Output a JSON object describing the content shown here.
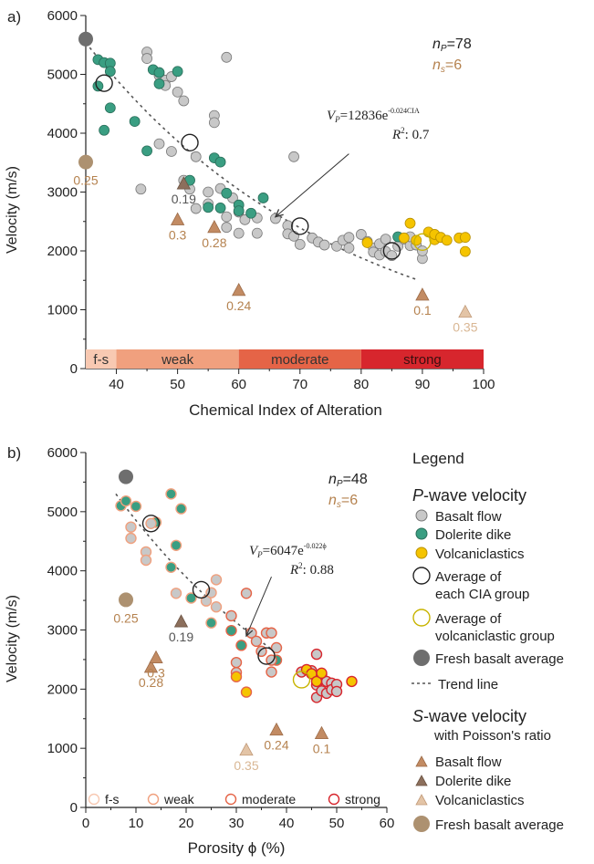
{
  "colors": {
    "basalt_fill": "#c8c8c8",
    "dolerite_fill": "#3a9e82",
    "volcani_fill": "#f5c400",
    "fresh_p": "#6e6e6e",
    "fresh_s": "#ad9170",
    "s_basalt": "#c28b63",
    "s_dolerite": "#8c6f5c",
    "s_volcani": "#e3c4a6",
    "label_brown": "#b5824f",
    "trend": "#555555",
    "cia_fs": "#f8c9b2",
    "cia_weak": "#f0a07e",
    "cia_moderate": "#e56447",
    "cia_strong": "#d7262d"
  },
  "chart_data": [
    {
      "panel": "a)",
      "type": "scatter",
      "xlabel": "Chemical Index of Alteration",
      "ylabel": "Velocity (m/s)",
      "xlim": [
        35,
        100
      ],
      "ylim": [
        0,
        6000
      ],
      "xticks": [
        "40",
        "50",
        "60",
        "70",
        "80",
        "90",
        "100"
      ],
      "yticks": [
        "0",
        "1000",
        "2000",
        "3000",
        "4000",
        "5000",
        "6000"
      ],
      "np_label": "n",
      "np_sub": "P",
      "np_value": "=78",
      "ns_label": "n",
      "ns_sub": "s",
      "ns_value": "=6",
      "eq_lhs": "V",
      "eq_sub": "P",
      "eq_rhs": "=12836e",
      "eq_exp": "-0.024CIA",
      "r2_label": "R",
      "r2_value": ": 0.7",
      "eq_arrow": [
        [
          66,
          2580
        ],
        [
          78,
          3650
        ]
      ],
      "trend": {
        "a": 12836,
        "b": -0.024,
        "from": 35,
        "to": 89
      },
      "bands": [
        {
          "label": "f-s",
          "from": 35,
          "to": 40,
          "color": "#f8c9b2"
        },
        {
          "label": "weak",
          "from": 40,
          "to": 60,
          "color": "#f0a07e"
        },
        {
          "label": "moderate",
          "from": 60,
          "to": 80,
          "color": "#e56447"
        },
        {
          "label": "strong",
          "from": 80,
          "to": 100,
          "color": "#d7262d"
        }
      ],
      "basalt_flow": [
        [
          45,
          5380
        ],
        [
          45,
          5270
        ],
        [
          47,
          4980
        ],
        [
          48,
          4900
        ],
        [
          48,
          4810
        ],
        [
          49,
          4960
        ],
        [
          50,
          4700
        ],
        [
          51,
          4550
        ],
        [
          58,
          5290
        ],
        [
          56,
          4300
        ],
        [
          56,
          4180
        ],
        [
          47,
          3820
        ],
        [
          49,
          3690
        ],
        [
          53,
          3600
        ],
        [
          51,
          3200
        ],
        [
          52,
          3050
        ],
        [
          55,
          3000
        ],
        [
          57,
          3060
        ],
        [
          59,
          2900
        ],
        [
          55,
          2800
        ],
        [
          53,
          2720
        ],
        [
          60,
          2660
        ],
        [
          58,
          2580
        ],
        [
          61,
          2530
        ],
        [
          58,
          2400
        ],
        [
          60,
          2300
        ],
        [
          63,
          2560
        ],
        [
          63,
          2300
        ],
        [
          66,
          2550
        ],
        [
          68,
          2430
        ],
        [
          68,
          2290
        ],
        [
          69,
          2250
        ],
        [
          70,
          2110
        ],
        [
          72,
          2220
        ],
        [
          73,
          2150
        ],
        [
          74,
          2100
        ],
        [
          76,
          2080
        ],
        [
          77,
          2180
        ],
        [
          78,
          2230
        ],
        [
          78,
          2050
        ],
        [
          80,
          2280
        ],
        [
          81,
          2160
        ],
        [
          82,
          2050
        ],
        [
          82,
          1980
        ],
        [
          83,
          2120
        ],
        [
          83,
          1930
        ],
        [
          84,
          2200
        ],
        [
          84,
          1990
        ],
        [
          85,
          1920
        ],
        [
          86,
          2080
        ],
        [
          87,
          2200
        ],
        [
          88,
          2090
        ],
        [
          88,
          2240
        ],
        [
          89,
          2100
        ],
        [
          90,
          1870
        ],
        [
          90,
          2000
        ],
        [
          69,
          3600
        ],
        [
          44,
          3050
        ]
      ],
      "dolerite_dike": [
        [
          37,
          5250
        ],
        [
          38,
          5200
        ],
        [
          39,
          5190
        ],
        [
          37,
          4800
        ],
        [
          39,
          5050
        ],
        [
          39,
          4430
        ],
        [
          43,
          4200
        ],
        [
          45,
          3700
        ],
        [
          46,
          5080
        ],
        [
          47,
          4840
        ],
        [
          47,
          5030
        ],
        [
          50,
          5050
        ],
        [
          56,
          3580
        ],
        [
          57,
          3510
        ],
        [
          52,
          3200
        ],
        [
          55,
          2740
        ],
        [
          57,
          2730
        ],
        [
          58,
          2980
        ],
        [
          60,
          2780
        ],
        [
          60,
          2680
        ],
        [
          62,
          2640
        ],
        [
          64,
          2900
        ],
        [
          86,
          2240
        ],
        [
          38,
          4050
        ]
      ],
      "volcaniclastics": [
        [
          81,
          2140
        ],
        [
          87,
          2220
        ],
        [
          88,
          2470
        ],
        [
          89,
          2180
        ],
        [
          91,
          2320
        ],
        [
          92,
          2190
        ],
        [
          92,
          2280
        ],
        [
          93,
          2230
        ],
        [
          94,
          2180
        ],
        [
          96,
          2220
        ],
        [
          97,
          2230
        ],
        [
          97,
          1990
        ]
      ],
      "cia_averages": [
        [
          38,
          4850
        ],
        [
          52,
          3840
        ],
        [
          70,
          2420
        ],
        [
          85,
          2000
        ]
      ],
      "volcani_average": [
        90,
        2150
      ],
      "fresh_p": [
        35,
        5600
      ],
      "s_points": [
        {
          "kind": "s_basalt",
          "x": 50,
          "y": 2520,
          "label": "0.3"
        },
        {
          "kind": "s_basalt",
          "x": 56,
          "y": 2390,
          "label": "0.28"
        },
        {
          "kind": "s_basalt",
          "x": 60,
          "y": 1320,
          "label": "0.24"
        },
        {
          "kind": "s_basalt",
          "x": 90,
          "y": 1240,
          "label": "0.1"
        },
        {
          "kind": "s_dolerite",
          "x": 51,
          "y": 3130,
          "label": "0.19"
        },
        {
          "kind": "s_volcani",
          "x": 97,
          "y": 950,
          "label": "0.35"
        }
      ],
      "fresh_s": {
        "x": 35,
        "y": 3510,
        "label": "0.25"
      }
    },
    {
      "panel": "b)",
      "type": "scatter",
      "xlabel": "Porosity ϕ (%)",
      "ylabel": "Velocity (m/s)",
      "xlim": [
        0,
        60
      ],
      "ylim": [
        0,
        6000
      ],
      "xticks": [
        "0",
        "10",
        "20",
        "30",
        "40",
        "50",
        "60"
      ],
      "yticks": [
        "0",
        "1000",
        "2000",
        "3000",
        "4000",
        "5000",
        "6000"
      ],
      "np_label": "n",
      "np_sub": "P",
      "np_value": "=48",
      "ns_label": "n",
      "ns_sub": "s",
      "ns_value": "=6",
      "eq_lhs": "V",
      "eq_sub": "P",
      "eq_rhs": "=6047e",
      "eq_exp": "-0.022ϕ",
      "r2_label": "R",
      "r2_value": ": 0.88",
      "eq_arrow": [
        [
          32,
          2900
        ],
        [
          37,
          3900
        ]
      ],
      "trend": {
        "a": 6047,
        "b": -0.022,
        "from": 6,
        "to": 37
      },
      "points": [
        {
          "kind": "dolerite",
          "x": 7,
          "y": 5100,
          "edge": "cia_weak"
        },
        {
          "kind": "dolerite",
          "x": 8,
          "y": 5180,
          "edge": "cia_weak"
        },
        {
          "kind": "dolerite",
          "x": 10,
          "y": 5090,
          "edge": "cia_weak"
        },
        {
          "kind": "dolerite",
          "x": 17,
          "y": 5300,
          "edge": "cia_weak"
        },
        {
          "kind": "dolerite",
          "x": 19,
          "y": 5050,
          "edge": "cia_weak"
        },
        {
          "kind": "dolerite",
          "x": 14,
          "y": 4820,
          "edge": "cia_weak"
        },
        {
          "kind": "dolerite",
          "x": 18,
          "y": 4430,
          "edge": "cia_weak"
        },
        {
          "kind": "dolerite",
          "x": 17,
          "y": 4060,
          "edge": "cia_weak"
        },
        {
          "kind": "dolerite",
          "x": 21,
          "y": 3540,
          "edge": "cia_weak"
        },
        {
          "kind": "dolerite",
          "x": 25,
          "y": 3120,
          "edge": "cia_weak"
        },
        {
          "kind": "dolerite",
          "x": 29,
          "y": 2990,
          "edge": "cia_moderate"
        },
        {
          "kind": "dolerite",
          "x": 31,
          "y": 2740,
          "edge": "cia_moderate"
        },
        {
          "kind": "dolerite",
          "x": 38,
          "y": 2490,
          "edge": "cia_moderate"
        },
        {
          "kind": "basalt",
          "x": 9,
          "y": 4740,
          "edge": "cia_weak"
        },
        {
          "kind": "basalt",
          "x": 9,
          "y": 4550,
          "edge": "cia_weak"
        },
        {
          "kind": "basalt",
          "x": 12,
          "y": 4320,
          "edge": "cia_weak"
        },
        {
          "kind": "basalt",
          "x": 12,
          "y": 4180,
          "edge": "cia_weak"
        },
        {
          "kind": "basalt",
          "x": 13,
          "y": 4800,
          "edge": "cia_weak"
        },
        {
          "kind": "basalt",
          "x": 18,
          "y": 3620,
          "edge": "cia_weak"
        },
        {
          "kind": "basalt",
          "x": 24,
          "y": 3490,
          "edge": "cia_weak"
        },
        {
          "kind": "basalt",
          "x": 25,
          "y": 3630,
          "edge": "cia_weak"
        },
        {
          "kind": "basalt",
          "x": 26,
          "y": 3850,
          "edge": "cia_weak"
        },
        {
          "kind": "basalt",
          "x": 26,
          "y": 3390,
          "edge": "cia_weak"
        },
        {
          "kind": "basalt",
          "x": 29,
          "y": 3240,
          "edge": "cia_moderate"
        },
        {
          "kind": "basalt",
          "x": 30,
          "y": 2450,
          "edge": "cia_moderate"
        },
        {
          "kind": "basalt",
          "x": 30,
          "y": 2280,
          "edge": "cia_moderate"
        },
        {
          "kind": "basalt",
          "x": 32,
          "y": 3620,
          "edge": "cia_moderate"
        },
        {
          "kind": "basalt",
          "x": 33,
          "y": 2950,
          "edge": "cia_moderate"
        },
        {
          "kind": "basalt",
          "x": 34,
          "y": 2810,
          "edge": "cia_moderate"
        },
        {
          "kind": "basalt",
          "x": 35,
          "y": 2640,
          "edge": "cia_moderate"
        },
        {
          "kind": "basalt",
          "x": 36,
          "y": 2950,
          "edge": "cia_moderate"
        },
        {
          "kind": "basalt",
          "x": 37,
          "y": 2950,
          "edge": "cia_moderate"
        },
        {
          "kind": "basalt",
          "x": 37,
          "y": 2490,
          "edge": "cia_moderate"
        },
        {
          "kind": "basalt",
          "x": 37,
          "y": 2290,
          "edge": "cia_moderate"
        },
        {
          "kind": "basalt",
          "x": 38,
          "y": 2700,
          "edge": "cia_moderate"
        },
        {
          "kind": "basalt",
          "x": 43,
          "y": 2290,
          "edge": "cia_strong"
        },
        {
          "kind": "basalt",
          "x": 45,
          "y": 2310,
          "edge": "cia_strong"
        },
        {
          "kind": "basalt",
          "x": 46,
          "y": 2590,
          "edge": "cia_strong"
        },
        {
          "kind": "basalt",
          "x": 46,
          "y": 2070,
          "edge": "cia_strong"
        },
        {
          "kind": "basalt",
          "x": 46,
          "y": 1860,
          "edge": "cia_strong"
        },
        {
          "kind": "basalt",
          "x": 47,
          "y": 2240,
          "edge": "cia_strong"
        },
        {
          "kind": "basalt",
          "x": 47,
          "y": 1970,
          "edge": "cia_strong"
        },
        {
          "kind": "basalt",
          "x": 48,
          "y": 2130,
          "edge": "cia_strong"
        },
        {
          "kind": "basalt",
          "x": 48,
          "y": 1930,
          "edge": "cia_strong"
        },
        {
          "kind": "basalt",
          "x": 49,
          "y": 2100,
          "edge": "cia_strong"
        },
        {
          "kind": "basalt",
          "x": 49,
          "y": 1990,
          "edge": "cia_strong"
        },
        {
          "kind": "basalt",
          "x": 50,
          "y": 2080,
          "edge": "cia_strong"
        },
        {
          "kind": "basalt",
          "x": 50,
          "y": 1960,
          "edge": "cia_strong"
        },
        {
          "kind": "volcani",
          "x": 30,
          "y": 2210,
          "edge": "cia_moderate"
        },
        {
          "kind": "volcani",
          "x": 32,
          "y": 1950,
          "edge": "cia_moderate"
        },
        {
          "kind": "volcani",
          "x": 44,
          "y": 2330,
          "edge": "cia_strong"
        },
        {
          "kind": "volcani",
          "x": 45,
          "y": 2260,
          "edge": "cia_strong"
        },
        {
          "kind": "volcani",
          "x": 46,
          "y": 2130,
          "edge": "cia_strong"
        },
        {
          "kind": "volcani",
          "x": 47,
          "y": 2270,
          "edge": "cia_strong"
        },
        {
          "kind": "volcani",
          "x": 53,
          "y": 2130,
          "edge": "cia_strong"
        }
      ],
      "cia_averages": [
        [
          13,
          4800
        ],
        [
          23,
          3680
        ],
        [
          36,
          2560
        ]
      ],
      "volcani_average": [
        43,
        2160
      ],
      "fresh_p": [
        8,
        5590
      ],
      "s_points": [
        {
          "kind": "s_basalt",
          "x": 13,
          "y": 2360,
          "label": "0.28"
        },
        {
          "kind": "s_basalt",
          "x": 14,
          "y": 2520,
          "label": "0.3"
        },
        {
          "kind": "s_basalt",
          "x": 38,
          "y": 1300,
          "label": "0.24"
        },
        {
          "kind": "s_basalt",
          "x": 47,
          "y": 1240,
          "label": "0.1"
        },
        {
          "kind": "s_dolerite",
          "x": 19,
          "y": 3130,
          "label": "0.19"
        },
        {
          "kind": "s_volcani",
          "x": 32,
          "y": 960,
          "label": "0.35"
        }
      ],
      "fresh_s": {
        "x": 8,
        "y": 3510,
        "label": "0.25"
      },
      "cia_legend": [
        {
          "label": "f-s",
          "color": "#f8c9b2"
        },
        {
          "label": "weak",
          "color": "#f0a07e"
        },
        {
          "label": "moderate",
          "color": "#e56447"
        },
        {
          "label": "strong",
          "color": "#d7262d"
        }
      ]
    }
  ],
  "legend": {
    "title": "Legend",
    "p_title_italic": "P",
    "p_title_rest": "-wave velocity",
    "basalt_flow": "Basalt flow",
    "dolerite_dike": "Dolerite dike",
    "volcaniclastics": "Volcaniclastics",
    "avg_cia_1": "Average of",
    "avg_cia_2": "each CIA group",
    "avg_volc_1": "Average of",
    "avg_volc_2": "volcaniclastic group",
    "fresh_basalt": "Fresh basalt average",
    "trend_line": "Trend line",
    "s_title_italic": "S",
    "s_title_rest": "-wave velocity",
    "s_subtitle": "with Poisson's ratio",
    "s_basalt_flow": "Basalt flow",
    "s_dolerite_dike": "Dolerite dike",
    "s_volcaniclastics": "Volcaniclastics",
    "s_fresh_basalt": "Fresh basalt average"
  }
}
